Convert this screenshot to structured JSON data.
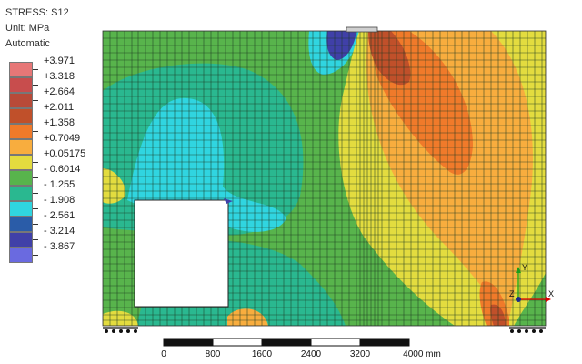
{
  "header": {
    "title": "STRESS: S12",
    "unit": "Unit: MPa",
    "mode": "Automatic"
  },
  "legend": {
    "levels": [
      {
        "label": "+3.971",
        "color": "#e77777"
      },
      {
        "label": "+3.318",
        "color": "#c84d4d"
      },
      {
        "label": "+2.664",
        "color": "#b84a38"
      },
      {
        "label": "+2.011",
        "color": "#c0502a"
      },
      {
        "label": "+1.358",
        "color": "#f07a2a"
      },
      {
        "label": "+0.7049",
        "color": "#f8ad3e"
      },
      {
        "label": "+0.05175",
        "color": "#e3dc3f"
      },
      {
        "label": "- 0.6014",
        "color": "#58b44c"
      },
      {
        "label": "- 1.255",
        "color": "#2ab890"
      },
      {
        "label": "- 1.908",
        "color": "#30d5e0"
      },
      {
        "label": "- 2.561",
        "color": "#2a5ca8"
      },
      {
        "label": "- 3.214",
        "color": "#4040a8"
      },
      {
        "label": "- 3.867",
        "color": "#6a6ae0"
      }
    ]
  },
  "axes_triad": {
    "x_label": "X",
    "y_label": "Y",
    "z_label": "Z"
  },
  "scale_bar": {
    "labels": [
      "0",
      "800",
      "1600",
      "2400",
      "3200",
      "4000 mm"
    ]
  }
}
